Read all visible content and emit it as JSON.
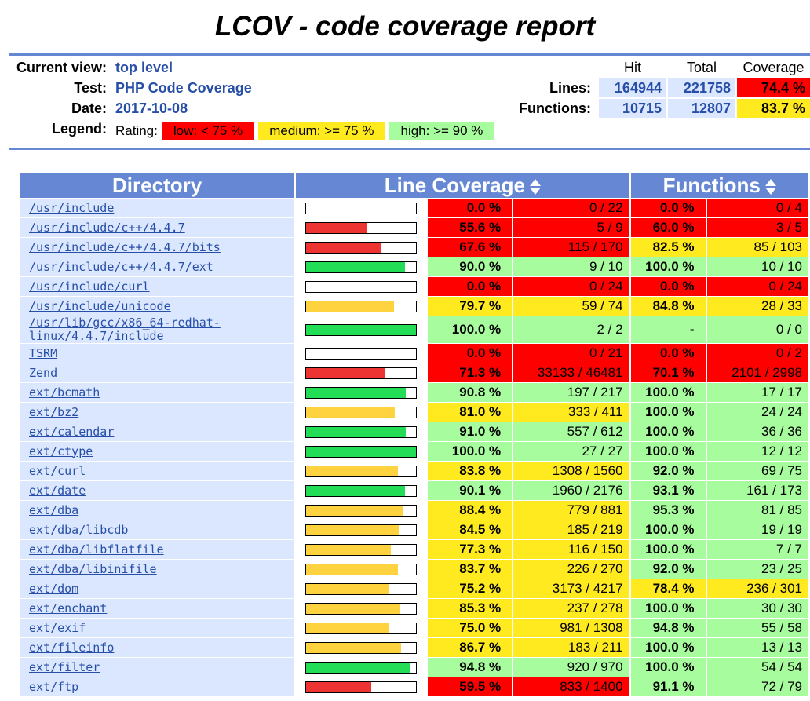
{
  "title": "LCOV - code coverage report",
  "header": {
    "current_view_label": "Current view:",
    "current_view": "top level",
    "test_label": "Test:",
    "test": "PHP Code Coverage",
    "date_label": "Date:",
    "date": "2017-10-08",
    "legend_label": "Legend:",
    "rating_label": "Rating:",
    "legend_low": "low: < 75 %",
    "legend_medium": "medium: >= 75 %",
    "legend_high": "high: >= 90 %"
  },
  "summary": {
    "col_hit": "Hit",
    "col_total": "Total",
    "col_coverage": "Coverage",
    "lines_label": "Lines:",
    "lines_hit": "164944",
    "lines_total": "221758",
    "lines_coverage": "74.4 %",
    "functions_label": "Functions:",
    "functions_hit": "10715",
    "functions_total": "12807",
    "functions_coverage": "83.7 %"
  },
  "table": {
    "col_directory": "Directory",
    "col_line_coverage": "Line Coverage",
    "col_functions": "Functions",
    "rows": [
      {
        "name": "/usr/include",
        "line_pct": "0.0 %",
        "line_frac": 0.0,
        "lines": "0 / 22",
        "func_pct": "0.0 %",
        "funcs": "0 / 4",
        "lr": "lo",
        "fr": "lo"
      },
      {
        "name": "/usr/include/c++/4.4.7",
        "line_pct": "55.6 %",
        "line_frac": 0.556,
        "lines": "5 / 9",
        "func_pct": "60.0 %",
        "funcs": "3 / 5",
        "lr": "lo",
        "fr": "lo"
      },
      {
        "name": "/usr/include/c++/4.4.7/bits",
        "line_pct": "67.6 %",
        "line_frac": 0.676,
        "lines": "115 / 170",
        "func_pct": "82.5 %",
        "funcs": "85 / 103",
        "lr": "lo",
        "fr": "med"
      },
      {
        "name": "/usr/include/c++/4.4.7/ext",
        "line_pct": "90.0 %",
        "line_frac": 0.9,
        "lines": "9 / 10",
        "func_pct": "100.0 %",
        "funcs": "10 / 10",
        "lr": "hi",
        "fr": "hi"
      },
      {
        "name": "/usr/include/curl",
        "line_pct": "0.0 %",
        "line_frac": 0.0,
        "lines": "0 / 24",
        "func_pct": "0.0 %",
        "funcs": "0 / 24",
        "lr": "lo",
        "fr": "lo"
      },
      {
        "name": "/usr/include/unicode",
        "line_pct": "79.7 %",
        "line_frac": 0.797,
        "lines": "59 / 74",
        "func_pct": "84.8 %",
        "funcs": "28 / 33",
        "lr": "med",
        "fr": "med"
      },
      {
        "name": "/usr/lib/gcc/x86_64-redhat-linux/4.4.7/include",
        "line_pct": "100.0 %",
        "line_frac": 1.0,
        "lines": "2 / 2",
        "func_pct": "-",
        "funcs": "0 / 0",
        "lr": "hi",
        "fr": "hi"
      },
      {
        "name": "TSRM",
        "line_pct": "0.0 %",
        "line_frac": 0.0,
        "lines": "0 / 21",
        "func_pct": "0.0 %",
        "funcs": "0 / 2",
        "lr": "lo",
        "fr": "lo"
      },
      {
        "name": "Zend",
        "line_pct": "71.3 %",
        "line_frac": 0.713,
        "lines": "33133 / 46481",
        "func_pct": "70.1 %",
        "funcs": "2101 / 2998",
        "lr": "lo",
        "fr": "lo"
      },
      {
        "name": "ext/bcmath",
        "line_pct": "90.8 %",
        "line_frac": 0.908,
        "lines": "197 / 217",
        "func_pct": "100.0 %",
        "funcs": "17 / 17",
        "lr": "hi",
        "fr": "hi"
      },
      {
        "name": "ext/bz2",
        "line_pct": "81.0 %",
        "line_frac": 0.81,
        "lines": "333 / 411",
        "func_pct": "100.0 %",
        "funcs": "24 / 24",
        "lr": "med",
        "fr": "hi"
      },
      {
        "name": "ext/calendar",
        "line_pct": "91.0 %",
        "line_frac": 0.91,
        "lines": "557 / 612",
        "func_pct": "100.0 %",
        "funcs": "36 / 36",
        "lr": "hi",
        "fr": "hi"
      },
      {
        "name": "ext/ctype",
        "line_pct": "100.0 %",
        "line_frac": 1.0,
        "lines": "27 / 27",
        "func_pct": "100.0 %",
        "funcs": "12 / 12",
        "lr": "hi",
        "fr": "hi"
      },
      {
        "name": "ext/curl",
        "line_pct": "83.8 %",
        "line_frac": 0.838,
        "lines": "1308 / 1560",
        "func_pct": "92.0 %",
        "funcs": "69 / 75",
        "lr": "med",
        "fr": "hi"
      },
      {
        "name": "ext/date",
        "line_pct": "90.1 %",
        "line_frac": 0.901,
        "lines": "1960 / 2176",
        "func_pct": "93.1 %",
        "funcs": "161 / 173",
        "lr": "hi",
        "fr": "hi"
      },
      {
        "name": "ext/dba",
        "line_pct": "88.4 %",
        "line_frac": 0.884,
        "lines": "779 / 881",
        "func_pct": "95.3 %",
        "funcs": "81 / 85",
        "lr": "med",
        "fr": "hi"
      },
      {
        "name": "ext/dba/libcdb",
        "line_pct": "84.5 %",
        "line_frac": 0.845,
        "lines": "185 / 219",
        "func_pct": "100.0 %",
        "funcs": "19 / 19",
        "lr": "med",
        "fr": "hi"
      },
      {
        "name": "ext/dba/libflatfile",
        "line_pct": "77.3 %",
        "line_frac": 0.773,
        "lines": "116 / 150",
        "func_pct": "100.0 %",
        "funcs": "7 / 7",
        "lr": "med",
        "fr": "hi"
      },
      {
        "name": "ext/dba/libinifile",
        "line_pct": "83.7 %",
        "line_frac": 0.837,
        "lines": "226 / 270",
        "func_pct": "92.0 %",
        "funcs": "23 / 25",
        "lr": "med",
        "fr": "hi"
      },
      {
        "name": "ext/dom",
        "line_pct": "75.2 %",
        "line_frac": 0.752,
        "lines": "3173 / 4217",
        "func_pct": "78.4 %",
        "funcs": "236 / 301",
        "lr": "med",
        "fr": "med"
      },
      {
        "name": "ext/enchant",
        "line_pct": "85.3 %",
        "line_frac": 0.853,
        "lines": "237 / 278",
        "func_pct": "100.0 %",
        "funcs": "30 / 30",
        "lr": "med",
        "fr": "hi"
      },
      {
        "name": "ext/exif",
        "line_pct": "75.0 %",
        "line_frac": 0.75,
        "lines": "981 / 1308",
        "func_pct": "94.8 %",
        "funcs": "55 / 58",
        "lr": "med",
        "fr": "hi"
      },
      {
        "name": "ext/fileinfo",
        "line_pct": "86.7 %",
        "line_frac": 0.867,
        "lines": "183 / 211",
        "func_pct": "100.0 %",
        "funcs": "13 / 13",
        "lr": "med",
        "fr": "hi"
      },
      {
        "name": "ext/filter",
        "line_pct": "94.8 %",
        "line_frac": 0.948,
        "lines": "920 / 970",
        "func_pct": "100.0 %",
        "funcs": "54 / 54",
        "lr": "hi",
        "fr": "hi"
      },
      {
        "name": "ext/ftp",
        "line_pct": "59.5 %",
        "line_frac": 0.595,
        "lines": "833 / 1400",
        "func_pct": "91.1 %",
        "funcs": "72 / 79",
        "lr": "lo",
        "fr": "hi"
      }
    ]
  },
  "colors": {
    "header_blue": "#6688d4",
    "link_blue": "#284fa8",
    "name_bg": "#dae7fe",
    "low": "#ff0000",
    "medium": "#ffea20",
    "high": "#a7fc9d",
    "bar_low": "#ee3333",
    "bar_medium": "#ffd23f",
    "bar_high": "#22dd55"
  }
}
